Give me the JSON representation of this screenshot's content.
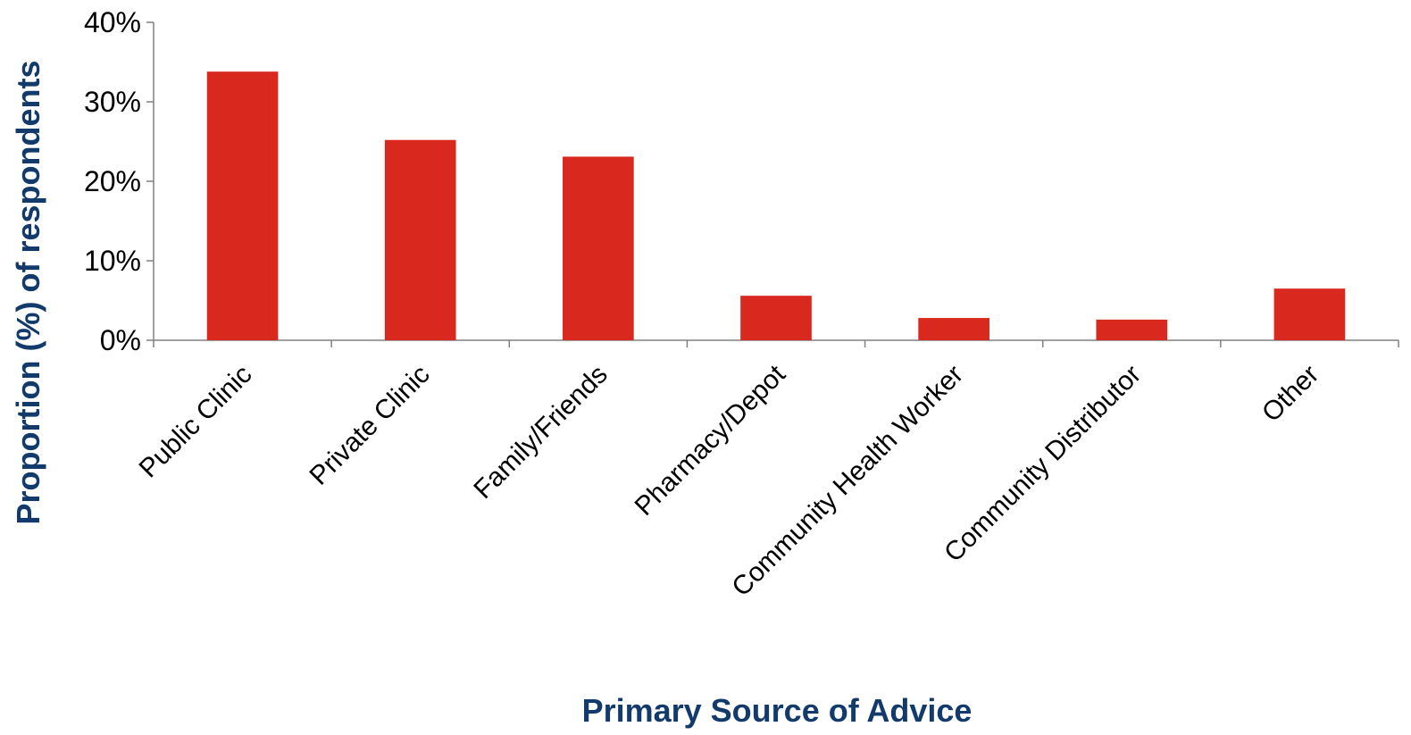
{
  "chart_data": {
    "type": "bar",
    "categories": [
      "Public Clinic",
      "Private Clinic",
      "Family/Friends",
      "Pharmacy/Depot",
      "Community Health Worker",
      "Community Distributor",
      "Other"
    ],
    "values": [
      33.8,
      25.2,
      23.1,
      5.6,
      2.8,
      2.6,
      6.5
    ],
    "unit": "%",
    "xlabel": "Primary Source of Advice",
    "ylabel": "Proportion (%) of respondents",
    "ylim": [
      0,
      40
    ],
    "yticks": [
      0,
      10,
      20,
      30,
      40
    ],
    "ytick_labels": [
      "0%",
      "10%",
      "20%",
      "30%",
      "40%"
    ],
    "grid": false,
    "legend": "none",
    "colors": {
      "bar": "#D9281E",
      "axis_title": "#123A6B",
      "axis_line": "#808080"
    }
  }
}
